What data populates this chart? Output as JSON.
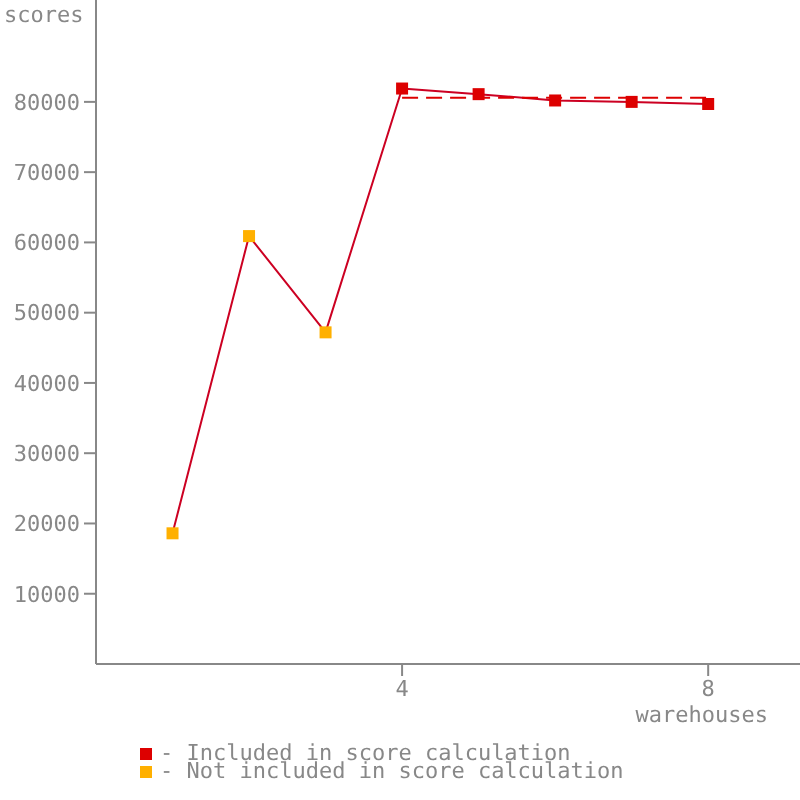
{
  "chart_data": {
    "type": "line",
    "xlabel": "warehouses",
    "ylabel": "scores",
    "x": [
      1,
      2,
      3,
      4,
      5,
      6,
      7,
      8
    ],
    "series": [
      {
        "color": "#cc0022",
        "marker": "none",
        "values": [
          18600,
          60900,
          47200,
          81900,
          81100,
          80200,
          80000,
          79700
        ]
      },
      {
        "type": "line",
        "color": "#dd0000",
        "marker": "none",
        "line_style": "dashed",
        "x": [
          4,
          8
        ],
        "values": [
          80600,
          80600
        ]
      },
      {
        "type": "scatter",
        "name": "- Included in score calculation",
        "color": "#dd0000",
        "marker": "square",
        "x": [
          4,
          5,
          6,
          7,
          8
        ],
        "values": [
          81900,
          81100,
          80200,
          80000,
          79700
        ]
      },
      {
        "type": "scatter",
        "name": "- Not included in score calculation",
        "color": "#ffb000",
        "marker": "square",
        "x": [
          1,
          2,
          3
        ],
        "values": [
          18600,
          60900,
          47200
        ]
      }
    ],
    "xlim": [
      0,
      9.2
    ],
    "xticks": [
      4,
      8
    ],
    "ylim": [
      0,
      94500
    ],
    "yticks": [
      10000,
      20000,
      30000,
      40000,
      50000,
      60000,
      70000,
      80000
    ],
    "grid": false,
    "legend": "bottom left"
  }
}
